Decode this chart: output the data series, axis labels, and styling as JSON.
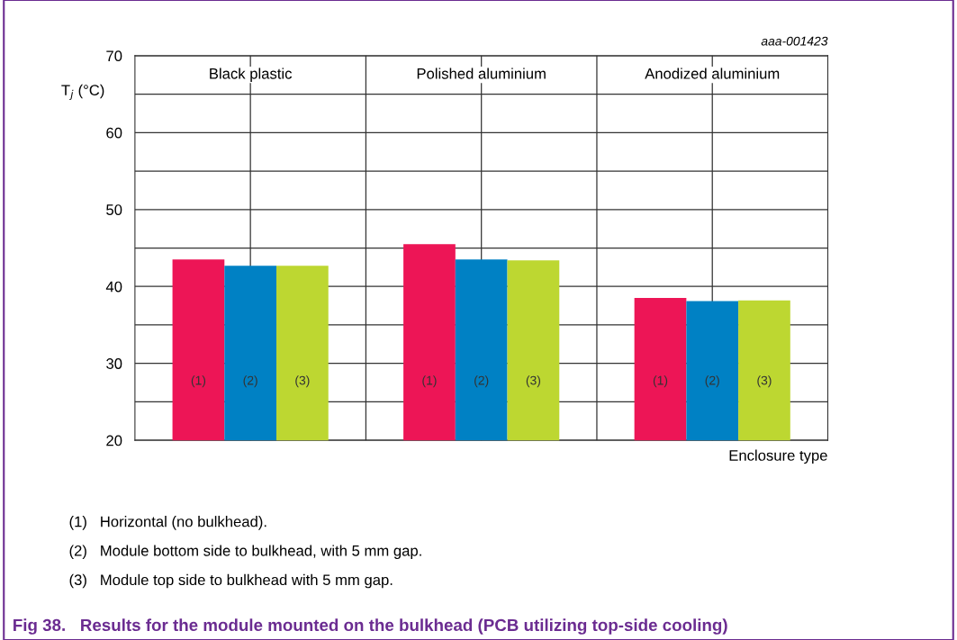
{
  "chart_data": {
    "type": "bar",
    "title": "Fig 38.   Results for the module mounted on the bulkhead (PCB utilizing top-side cooling)",
    "xlabel": "Enclosure type",
    "ylabel": "T$_{j}$ (°C)",
    "categories": [
      "Black plastic",
      "Polished aluminium",
      "Anodized aluminium"
    ],
    "series": [
      {
        "name": "(1)",
        "color": "#ed1556",
        "values": [
          43.5,
          45.5,
          38.5
        ]
      },
      {
        "name": "(2)",
        "color": "#0081c4",
        "values": [
          42.7,
          43.5,
          38.1
        ]
      },
      {
        "name": "(3)",
        "color": "#bdd731",
        "values": [
          42.7,
          43.4,
          38.2
        ]
      }
    ],
    "ylim": [
      20,
      70
    ],
    "yticks": [
      20,
      {
        "value": 25,
        "label": null
      },
      30,
      {
        "value": 35,
        "label": null
      },
      40,
      {
        "value": 45,
        "label": null
      },
      50,
      {
        "value": 55,
        "label": null
      },
      60,
      {
        "value": 65,
        "label": null
      },
      70
    ],
    "grid": true,
    "annotations": [
      "aaa-001423",
      "(1)   Horizontal (no bulkhead).",
      "(2)   Module bottom side to bulkhead, with 5 mm gap.",
      "(3)   Module top side to bulkhead with 5 mm gap."
    ]
  }
}
